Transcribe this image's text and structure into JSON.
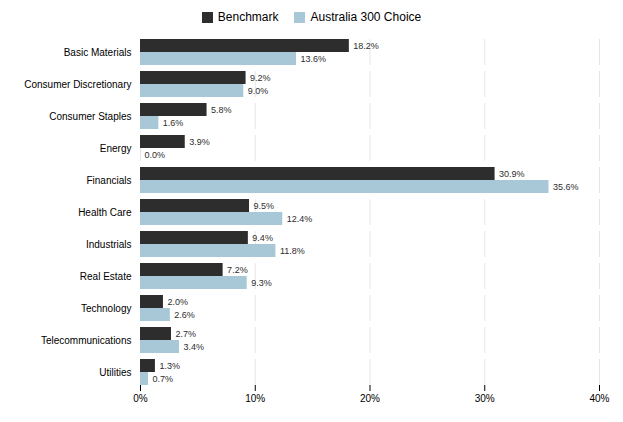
{
  "chart_data": {
    "type": "bar",
    "orientation": "horizontal",
    "categories": [
      "Basic Materials",
      "Consumer Discretionary",
      "Consumer Staples",
      "Energy",
      "Financials",
      "Health Care",
      "Industrials",
      "Real Estate",
      "Technology",
      "Telecommunications",
      "Utilities"
    ],
    "series": [
      {
        "name": "Benchmark",
        "color": "#2d2d2d",
        "values": [
          18.2,
          9.2,
          5.8,
          3.9,
          30.9,
          9.5,
          9.4,
          7.2,
          2.0,
          2.7,
          1.3
        ],
        "value_labels": [
          "18.2%",
          "9.2%",
          "5.8%",
          "3.9%",
          "30.9%",
          "9.5%",
          "9.4%",
          "7.2%",
          "2.0%",
          "2.7%",
          "1.3%"
        ]
      },
      {
        "name": "Australia 300 Choice",
        "color": "#a8c8d8",
        "values": [
          13.6,
          9.0,
          1.6,
          0.0,
          35.6,
          12.4,
          11.8,
          9.3,
          2.6,
          3.4,
          0.7
        ],
        "value_labels": [
          "13.6%",
          "9.0%",
          "1.6%",
          "0.0%",
          "35.6%",
          "12.4%",
          "11.8%",
          "9.3%",
          "2.6%",
          "3.4%",
          "0.7%"
        ]
      }
    ],
    "xlim": [
      0,
      40
    ],
    "xticks": [
      {
        "value": 0,
        "label": "0%"
      },
      {
        "value": 10,
        "label": "10%"
      },
      {
        "value": 20,
        "label": "20%"
      },
      {
        "value": 30,
        "label": "30%"
      },
      {
        "value": 40,
        "label": "40%"
      }
    ],
    "grid": true,
    "data_labels": true,
    "legend": "top"
  }
}
